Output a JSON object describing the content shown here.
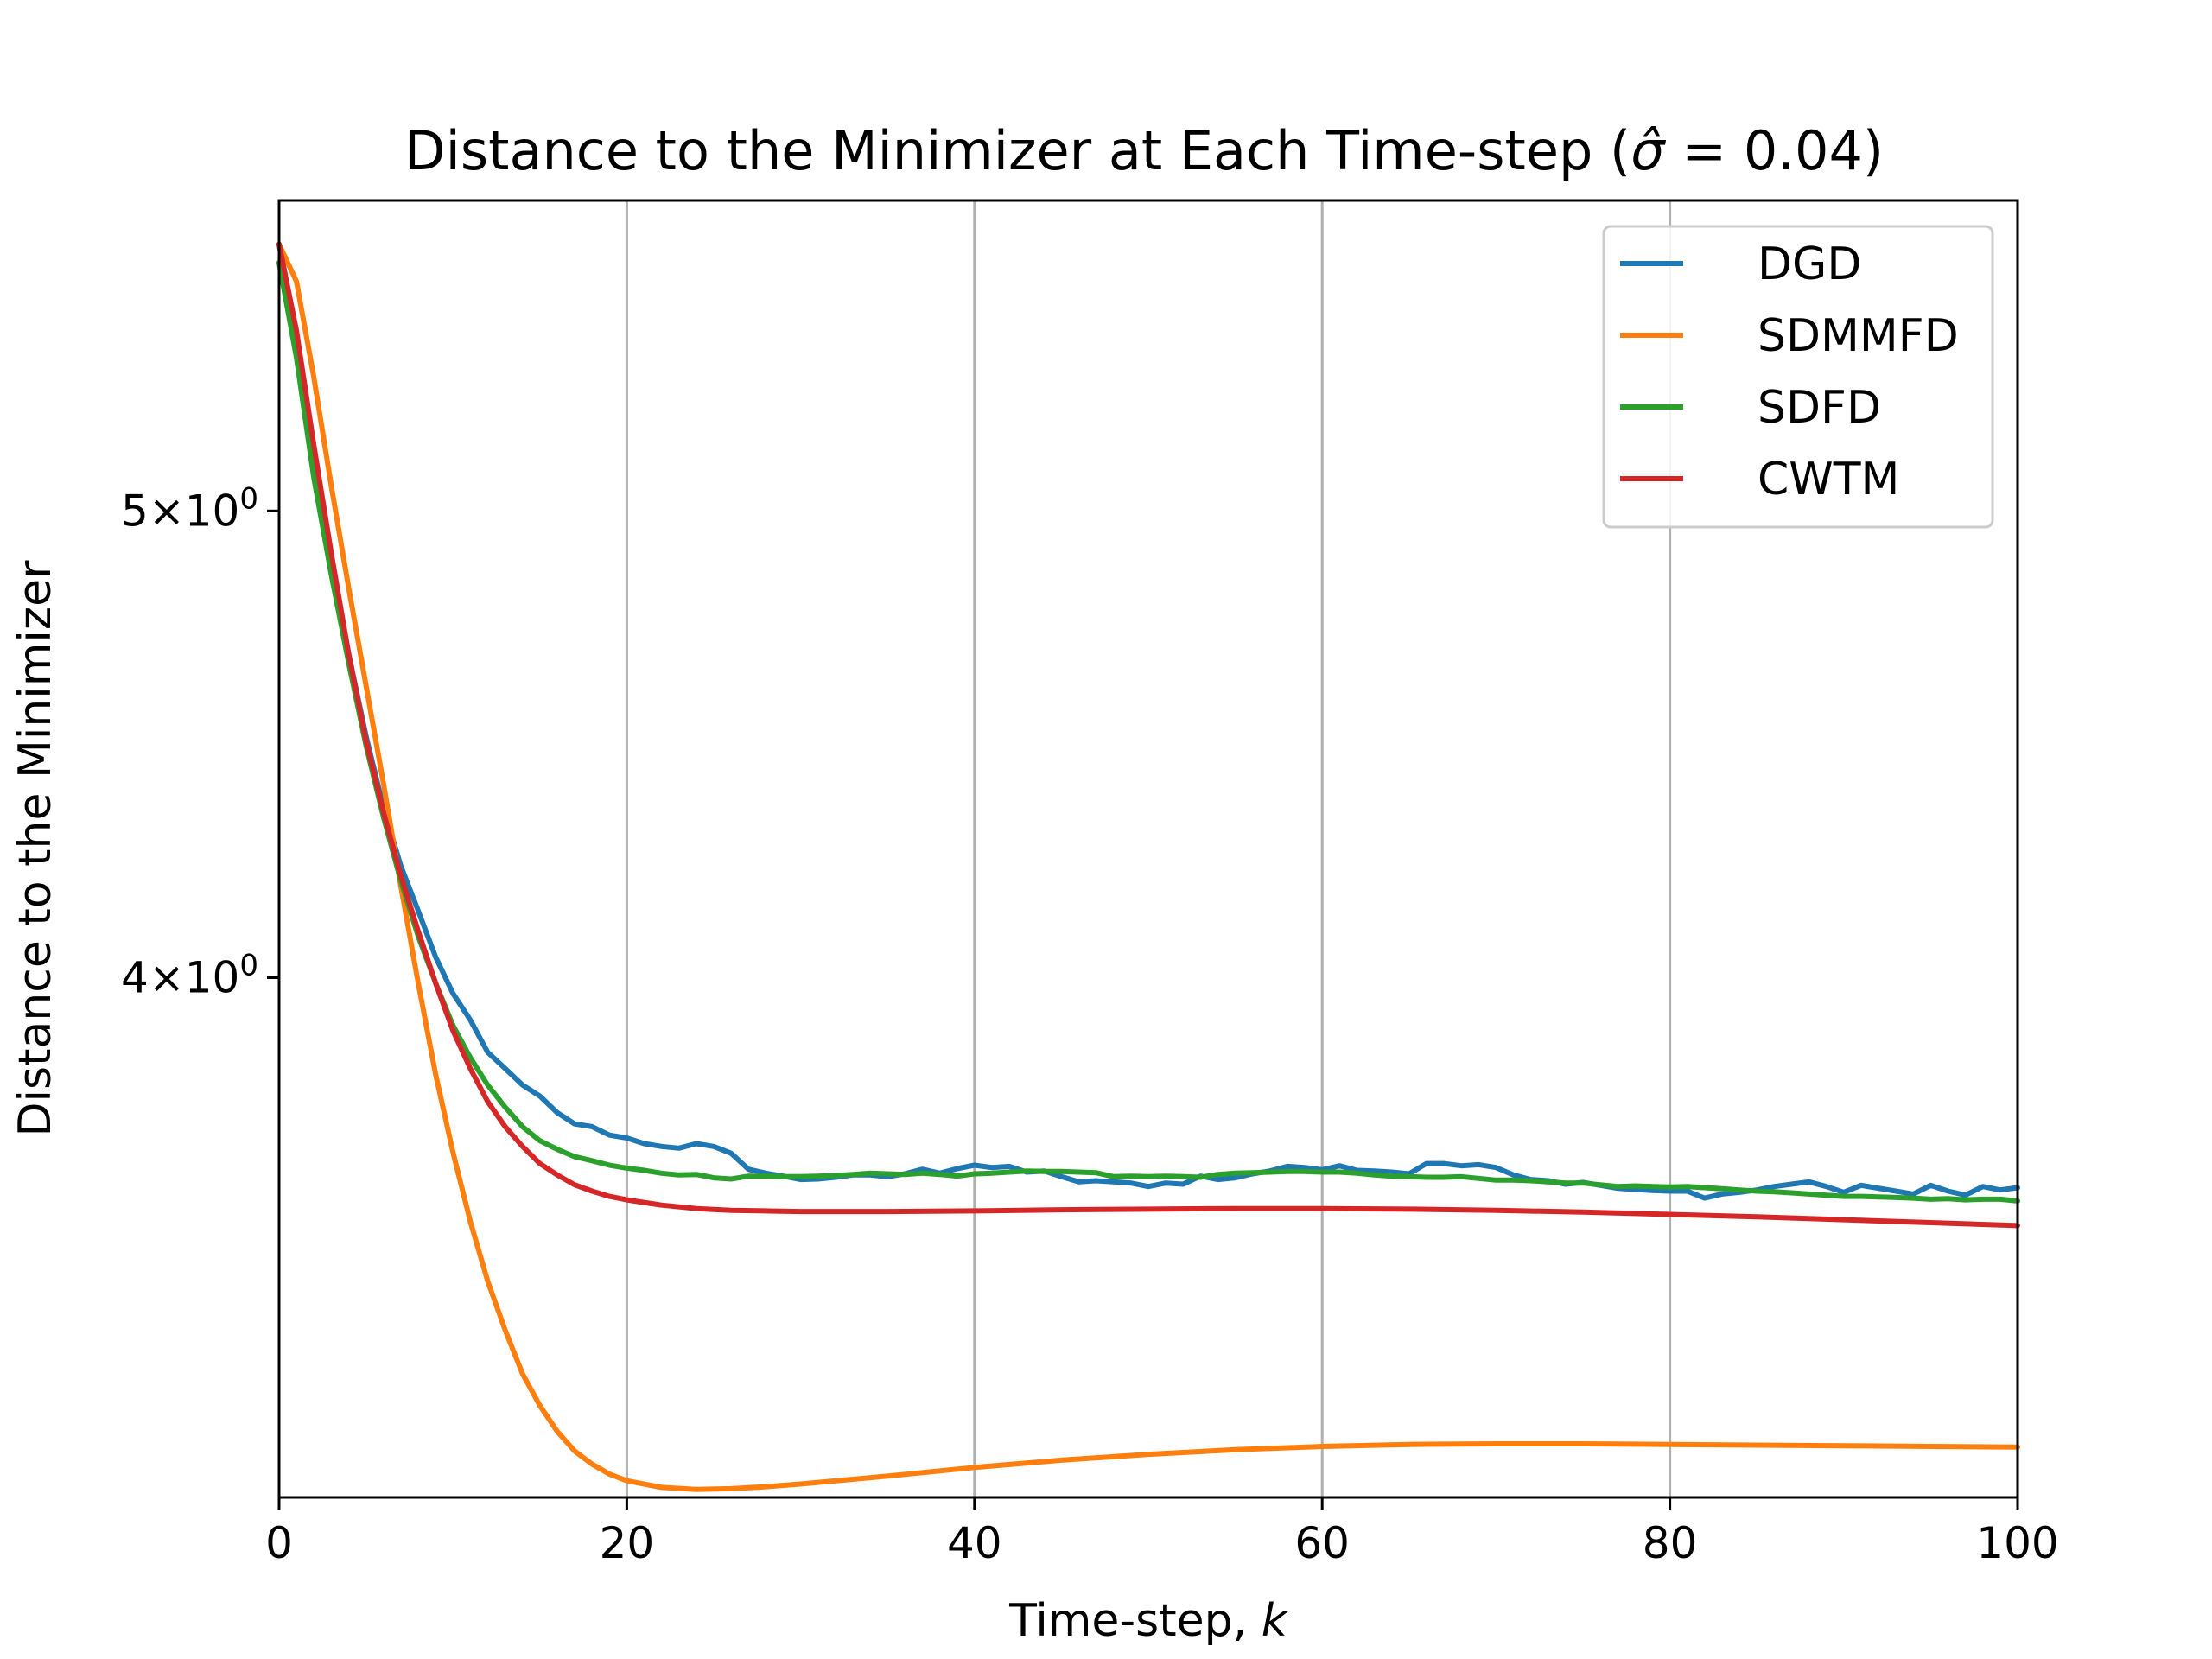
{
  "chart_data": {
    "type": "line",
    "title": "Distance to the Minimizer at Each Time-step (σ̂ = 0.04)",
    "title_prefix": "Distance to the Minimizer at Each Time-step (",
    "title_sigma": "σ̂",
    "title_suffix": " = 0.04)",
    "xlabel_prefix": "Time-step, ",
    "xlabel_var": "k",
    "ylabel": "Distance to the Minimizer",
    "xlim": [
      0,
      100
    ],
    "ylim": [
      3.12,
      5.8
    ],
    "yscale": "log",
    "grid": "vertical at x ticks",
    "legend_position": "top-right",
    "xticks": [
      {
        "value": 0,
        "label": "0"
      },
      {
        "value": 20,
        "label": "20"
      },
      {
        "value": 40,
        "label": "40"
      },
      {
        "value": 60,
        "label": "60"
      },
      {
        "value": 80,
        "label": "80"
      },
      {
        "value": 100,
        "label": "100"
      }
    ],
    "yticks": [
      {
        "value": 4,
        "mantissa": "4",
        "base": "10",
        "exp": "0"
      },
      {
        "value": 5,
        "mantissa": "5",
        "base": "10",
        "exp": "0"
      }
    ],
    "series": [
      {
        "name": "DGD",
        "color": "#1f77b4",
        "x": [
          0,
          1,
          2,
          3,
          4,
          5,
          6,
          7,
          8,
          9,
          10,
          11,
          12,
          13,
          14,
          15,
          16,
          17,
          18,
          19,
          20,
          21,
          22,
          23,
          24,
          25,
          26,
          27,
          28,
          29,
          30,
          31,
          32,
          33,
          34,
          35,
          36,
          37,
          38,
          39,
          40,
          41,
          42,
          43,
          44,
          45,
          46,
          47,
          48,
          49,
          50,
          51,
          52,
          53,
          54,
          55,
          56,
          57,
          58,
          59,
          60,
          61,
          62,
          63,
          64,
          65,
          66,
          67,
          68,
          69,
          70,
          71,
          72,
          73,
          74,
          75,
          76,
          77,
          78,
          79,
          80,
          81,
          82,
          83,
          84,
          85,
          86,
          87,
          88,
          89,
          90,
          91,
          92,
          93,
          94,
          95,
          96,
          97,
          98,
          99,
          100
        ],
        "y": [
          5.68,
          5.42,
          5.12,
          4.88,
          4.67,
          4.49,
          4.34,
          4.22,
          4.13,
          4.04,
          3.97,
          3.92,
          3.86,
          3.83,
          3.8,
          3.78,
          3.75,
          3.73,
          3.725,
          3.71,
          3.705,
          3.695,
          3.69,
          3.687,
          3.695,
          3.69,
          3.678,
          3.65,
          3.643,
          3.638,
          3.632,
          3.633,
          3.636,
          3.64,
          3.64,
          3.637,
          3.642,
          3.65,
          3.643,
          3.651,
          3.657,
          3.653,
          3.655,
          3.645,
          3.647,
          3.637,
          3.628,
          3.63,
          3.628,
          3.626,
          3.62,
          3.626,
          3.624,
          3.638,
          3.632,
          3.635,
          3.642,
          3.647,
          3.655,
          3.653,
          3.649,
          3.656,
          3.648,
          3.647,
          3.645,
          3.642,
          3.66,
          3.66,
          3.656,
          3.658,
          3.653,
          3.64,
          3.632,
          3.63,
          3.624,
          3.627,
          3.622,
          3.617,
          3.615,
          3.613,
          3.612,
          3.612,
          3.6,
          3.607,
          3.61,
          3.614,
          3.62,
          3.624,
          3.628,
          3.62,
          3.61,
          3.622,
          3.617,
          3.612,
          3.607,
          3.622,
          3.612,
          3.605,
          3.62,
          3.614,
          3.618
        ]
      },
      {
        "name": "SDMMFD",
        "color": "#ff7f0e",
        "x": [
          0,
          1,
          2,
          3,
          4,
          5,
          6,
          7,
          8,
          9,
          10,
          11,
          12,
          13,
          14,
          15,
          16,
          17,
          18,
          19,
          20,
          22,
          24,
          26,
          28,
          30,
          35,
          40,
          45,
          50,
          55,
          60,
          65,
          70,
          75,
          80,
          85,
          90,
          95,
          100
        ],
        "y": [
          5.68,
          5.58,
          5.33,
          5.06,
          4.82,
          4.6,
          4.39,
          4.18,
          3.99,
          3.82,
          3.68,
          3.56,
          3.46,
          3.38,
          3.31,
          3.26,
          3.22,
          3.19,
          3.17,
          3.155,
          3.145,
          3.135,
          3.132,
          3.133,
          3.136,
          3.14,
          3.152,
          3.165,
          3.176,
          3.185,
          3.192,
          3.197,
          3.2,
          3.201,
          3.201,
          3.2,
          3.199,
          3.198,
          3.197,
          3.196
        ]
      },
      {
        "name": "SDFD",
        "color": "#2ca02c",
        "x": [
          0,
          1,
          2,
          3,
          4,
          5,
          6,
          7,
          8,
          9,
          10,
          11,
          12,
          13,
          14,
          15,
          16,
          17,
          18,
          19,
          20,
          21,
          22,
          23,
          24,
          25,
          26,
          27,
          28,
          29,
          30,
          31,
          32,
          33,
          34,
          35,
          36,
          37,
          38,
          39,
          40,
          41,
          42,
          43,
          44,
          45,
          46,
          47,
          48,
          49,
          50,
          51,
          52,
          53,
          54,
          55,
          56,
          57,
          58,
          59,
          60,
          61,
          62,
          63,
          64,
          65,
          66,
          67,
          68,
          69,
          70,
          71,
          72,
          73,
          74,
          75,
          76,
          77,
          78,
          79,
          80,
          81,
          82,
          83,
          84,
          85,
          86,
          87,
          88,
          89,
          90,
          91,
          92,
          93,
          94,
          95,
          96,
          97,
          98,
          99,
          100
        ],
        "y": [
          5.63,
          5.38,
          5.08,
          4.85,
          4.65,
          4.47,
          4.32,
          4.19,
          4.08,
          3.99,
          3.91,
          3.85,
          3.8,
          3.76,
          3.725,
          3.7,
          3.685,
          3.672,
          3.665,
          3.657,
          3.652,
          3.648,
          3.643,
          3.64,
          3.641,
          3.635,
          3.633,
          3.638,
          3.638,
          3.637,
          3.637,
          3.638,
          3.639,
          3.641,
          3.643,
          3.642,
          3.641,
          3.643,
          3.641,
          3.638,
          3.642,
          3.643,
          3.645,
          3.647,
          3.646,
          3.646,
          3.645,
          3.644,
          3.637,
          3.638,
          3.637,
          3.638,
          3.637,
          3.636,
          3.641,
          3.643,
          3.644,
          3.645,
          3.646,
          3.646,
          3.645,
          3.645,
          3.643,
          3.64,
          3.638,
          3.637,
          3.636,
          3.636,
          3.637,
          3.634,
          3.631,
          3.631,
          3.63,
          3.628,
          3.626,
          3.626,
          3.623,
          3.62,
          3.621,
          3.62,
          3.619,
          3.62,
          3.618,
          3.616,
          3.614,
          3.612,
          3.611,
          3.609,
          3.607,
          3.605,
          3.603,
          3.603,
          3.602,
          3.601,
          3.6,
          3.598,
          3.599,
          3.597,
          3.598,
          3.598,
          3.595
        ]
      },
      {
        "name": "CWTM",
        "color": "#d62728",
        "x": [
          0,
          1,
          2,
          3,
          4,
          5,
          6,
          7,
          8,
          9,
          10,
          11,
          12,
          13,
          14,
          15,
          16,
          17,
          18,
          19,
          20,
          22,
          24,
          26,
          28,
          30,
          35,
          40,
          45,
          50,
          55,
          60,
          65,
          70,
          75,
          80,
          85,
          90,
          95,
          100
        ],
        "y": [
          5.68,
          5.45,
          5.16,
          4.9,
          4.67,
          4.48,
          4.33,
          4.2,
          4.09,
          3.99,
          3.9,
          3.83,
          3.77,
          3.725,
          3.69,
          3.66,
          3.64,
          3.623,
          3.612,
          3.603,
          3.597,
          3.588,
          3.582,
          3.579,
          3.578,
          3.577,
          3.577,
          3.578,
          3.58,
          3.581,
          3.582,
          3.582,
          3.581,
          3.579,
          3.576,
          3.572,
          3.568,
          3.563,
          3.558,
          3.553
        ]
      }
    ]
  }
}
